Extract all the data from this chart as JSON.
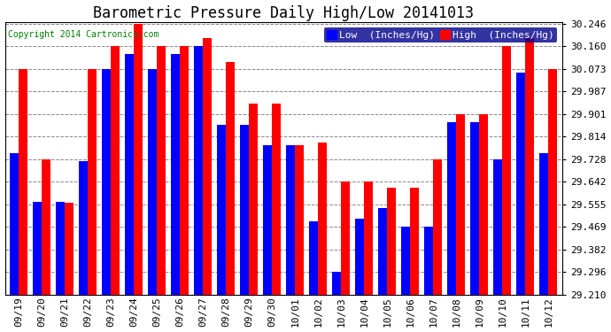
{
  "title": "Barometric Pressure Daily High/Low 20141013",
  "copyright": "Copyright 2014 Cartronics.com",
  "legend_low": "Low  (Inches/Hg)",
  "legend_high": "High  (Inches/Hg)",
  "dates": [
    "09/19",
    "09/20",
    "09/21",
    "09/22",
    "09/23",
    "09/24",
    "09/25",
    "09/26",
    "09/27",
    "09/28",
    "09/29",
    "09/30",
    "10/01",
    "10/02",
    "10/03",
    "10/04",
    "10/05",
    "10/06",
    "10/07",
    "10/08",
    "10/09",
    "10/10",
    "10/11",
    "10/12"
  ],
  "low": [
    29.75,
    29.565,
    29.565,
    29.72,
    30.073,
    30.13,
    30.073,
    30.13,
    30.16,
    29.86,
    29.86,
    29.78,
    29.78,
    29.49,
    29.296,
    29.5,
    29.54,
    29.469,
    29.469,
    29.87,
    29.87,
    29.728,
    30.06,
    29.75
  ],
  "high": [
    30.073,
    29.728,
    29.56,
    30.073,
    30.16,
    30.246,
    30.16,
    30.16,
    30.19,
    30.1,
    29.94,
    29.94,
    29.78,
    29.79,
    29.642,
    29.642,
    29.62,
    29.62,
    29.728,
    29.901,
    29.901,
    30.16,
    30.19,
    30.073
  ],
  "ylim_min": 29.21,
  "ylim_max": 30.246,
  "yticks": [
    29.21,
    29.296,
    29.382,
    29.469,
    29.555,
    29.642,
    29.728,
    29.814,
    29.901,
    29.987,
    30.073,
    30.16,
    30.246
  ],
  "bar_width": 0.38,
  "low_color": "#0000ff",
  "high_color": "#ff0000",
  "bg_color": "#ffffff",
  "grid_color": "#888888",
  "title_fontsize": 12,
  "copyright_fontsize": 7,
  "tick_fontsize": 8,
  "legend_fontsize": 8
}
